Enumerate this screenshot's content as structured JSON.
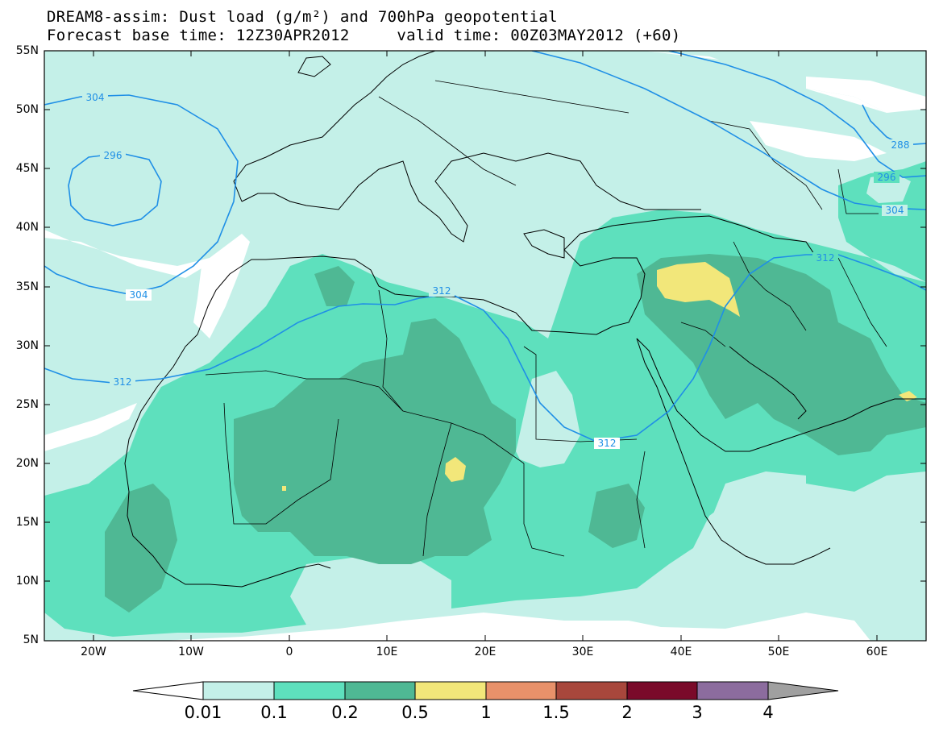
{
  "title": {
    "line1": "DREAM8-assim: Dust load (g/m²) and 700hPa geopotential",
    "line2": "Forecast base time: 12Z30APR2012     valid time: 00Z03MAY2012 (+60)"
  },
  "map": {
    "lon_range": [
      -25,
      65
    ],
    "lat_range": [
      5,
      55
    ],
    "lat_labels": [
      "55N",
      "50N",
      "45N",
      "40N",
      "35N",
      "30N",
      "25N",
      "20N",
      "15N",
      "10N",
      "5N"
    ],
    "lon_labels": [
      "20W",
      "10W",
      "0",
      "10E",
      "20E",
      "30E",
      "40E",
      "50E",
      "60E"
    ],
    "colors": {
      "ocean_background": "#ffffff",
      "level_0_01": "#c4f0e8",
      "level_0_1": "#5ee0bd",
      "level_0_2": "#4fb894",
      "level_0_5": "#f2e77a",
      "level_1": "#e8916a",
      "level_1_5": "#a8473c",
      "level_2": "#7a0a2a",
      "level_3": "#8c6c9e",
      "level_4": "#a0a0a0",
      "contour": "#1f8fe6",
      "coastline": "#000000"
    },
    "contour_labels": [
      "304",
      "296",
      "304",
      "312",
      "312",
      "312",
      "312",
      "288",
      "296",
      "304"
    ]
  },
  "colorbar": {
    "labels": [
      "0.01",
      "0.1",
      "0.2",
      "0.5",
      "1",
      "1.5",
      "2",
      "3",
      "4"
    ],
    "colors": [
      "#ffffff",
      "#c4f0e8",
      "#5ee0bd",
      "#4fb894",
      "#f2e77a",
      "#e8916a",
      "#a8473c",
      "#7a0a2a",
      "#8c6c9e",
      "#a0a0a0"
    ]
  }
}
